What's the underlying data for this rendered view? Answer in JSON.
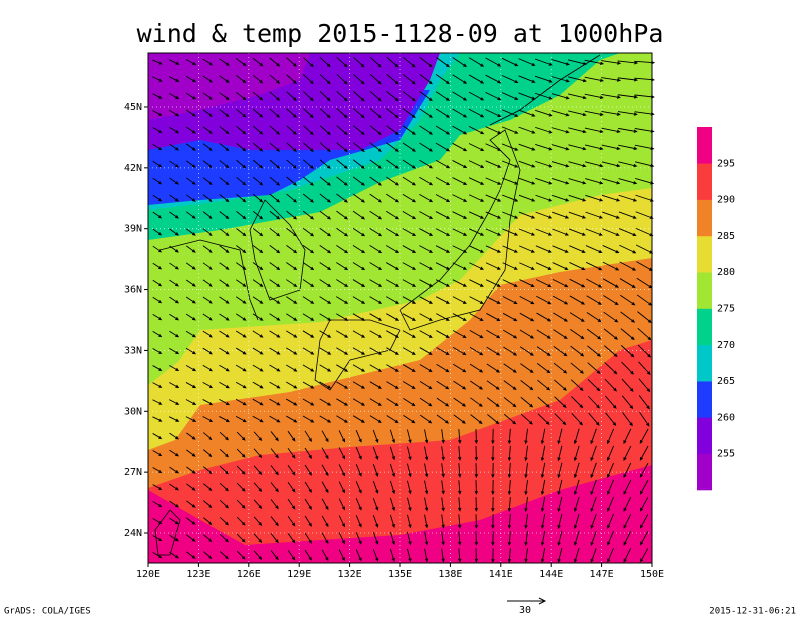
{
  "title": "wind & temp 2015-1128-09 at 1000hPa",
  "lat_labels": [
    "24N",
    "27N",
    "30N",
    "33N",
    "36N",
    "39N",
    "42N",
    "45N"
  ],
  "lon_labels": [
    "120E",
    "123E",
    "126E",
    "129E",
    "132E",
    "135E",
    "138E",
    "141E",
    "144E",
    "147E",
    "150E"
  ],
  "colorbar": {
    "labels": [
      "255",
      "260",
      "265",
      "270",
      "275",
      "280",
      "285",
      "290",
      "295"
    ],
    "colors": [
      "#a000c8",
      "#8200dc",
      "#1e3cff",
      "#00c8c8",
      "#00d28c",
      "#a0e632",
      "#e6dc32",
      "#f08228",
      "#fa3c3c",
      "#f00082"
    ]
  },
  "vector_reference": "30",
  "footer_left": "GrADS: COLA/IGES",
  "footer_right": "2015-12-31-06:21"
}
